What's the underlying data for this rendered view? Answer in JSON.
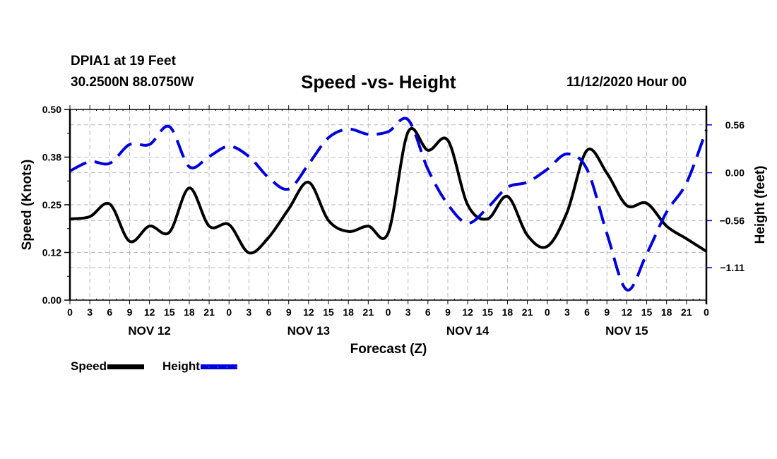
{
  "header": {
    "station": "DPIA1 at 19 Feet",
    "coords": "30.2500N 88.0750W",
    "title": "Speed -vs- Height",
    "runtime": "11/12/2020 Hour 00"
  },
  "legend": {
    "speed_label": "Speed",
    "height_label": "Height"
  },
  "colors": {
    "speed": "#000000",
    "height": "#0000dd",
    "grid": "#bbbbbb",
    "axis": "#000000"
  },
  "chart_data": {
    "type": "line",
    "title": "Speed -vs- Height",
    "xlabel": "Forecast (Z)",
    "ylabel": "Speed (Knots)",
    "y2label": "Height (feet)",
    "xlim": [
      0,
      96
    ],
    "ylim": [
      0,
      0.5
    ],
    "y2lim": [
      -1.49,
      0.74
    ],
    "grid": true,
    "legend_position": "bottom-left",
    "x_tick_labels": [
      "0",
      "3",
      "6",
      "9",
      "12",
      "15",
      "18",
      "21",
      "0",
      "3",
      "6",
      "9",
      "12",
      "15",
      "18",
      "21",
      "0",
      "3",
      "6",
      "9",
      "12",
      "15",
      "18",
      "21",
      "0",
      "3",
      "6",
      "9",
      "12",
      "15",
      "18",
      "21",
      "0"
    ],
    "day_labels": [
      {
        "label": "NOV 12",
        "center_hour": 12
      },
      {
        "label": "NOV 13",
        "center_hour": 36
      },
      {
        "label": "NOV 14",
        "center_hour": 60
      },
      {
        "label": "NOV 15",
        "center_hour": 84
      }
    ],
    "y_ticks": [
      {
        "value": 0.0,
        "label": "0.00"
      },
      {
        "value": 0.125,
        "label": "0.12"
      },
      {
        "value": 0.25,
        "label": "0.25"
      },
      {
        "value": 0.375,
        "label": "0.38"
      },
      {
        "value": 0.5,
        "label": "0.50"
      }
    ],
    "y2_ticks": [
      {
        "value": 0.56,
        "label": "0.56"
      },
      {
        "value": 0.0,
        "label": "0.00"
      },
      {
        "value": -0.56,
        "label": "−0.56"
      },
      {
        "value": -1.11,
        "label": "−1.11"
      }
    ],
    "x": [
      0,
      3,
      6,
      9,
      12,
      15,
      18,
      21,
      24,
      27,
      30,
      33,
      36,
      39,
      42,
      45,
      48,
      51,
      54,
      57,
      60,
      63,
      66,
      69,
      72,
      75,
      78,
      81,
      84,
      87,
      90,
      93,
      96
    ],
    "series": [
      {
        "name": "Speed",
        "axis": "left",
        "style": "solid",
        "values": [
          0.213,
          0.219,
          0.252,
          0.154,
          0.194,
          0.178,
          0.294,
          0.194,
          0.198,
          0.124,
          0.165,
          0.239,
          0.309,
          0.209,
          0.18,
          0.194,
          0.176,
          0.441,
          0.393,
          0.419,
          0.25,
          0.213,
          0.272,
          0.17,
          0.141,
          0.231,
          0.393,
          0.333,
          0.248,
          0.254,
          0.194,
          0.161,
          0.128
        ]
      },
      {
        "name": "Height",
        "axis": "right",
        "style": "dashed",
        "values": [
          0.02,
          0.13,
          0.11,
          0.33,
          0.33,
          0.54,
          0.07,
          0.19,
          0.31,
          0.19,
          -0.06,
          -0.19,
          0.1,
          0.41,
          0.51,
          0.45,
          0.48,
          0.62,
          0.04,
          -0.37,
          -0.59,
          -0.41,
          -0.17,
          -0.11,
          0.04,
          0.22,
          0.04,
          -0.71,
          -1.37,
          -0.95,
          -0.46,
          -0.12,
          0.5
        ]
      }
    ]
  }
}
